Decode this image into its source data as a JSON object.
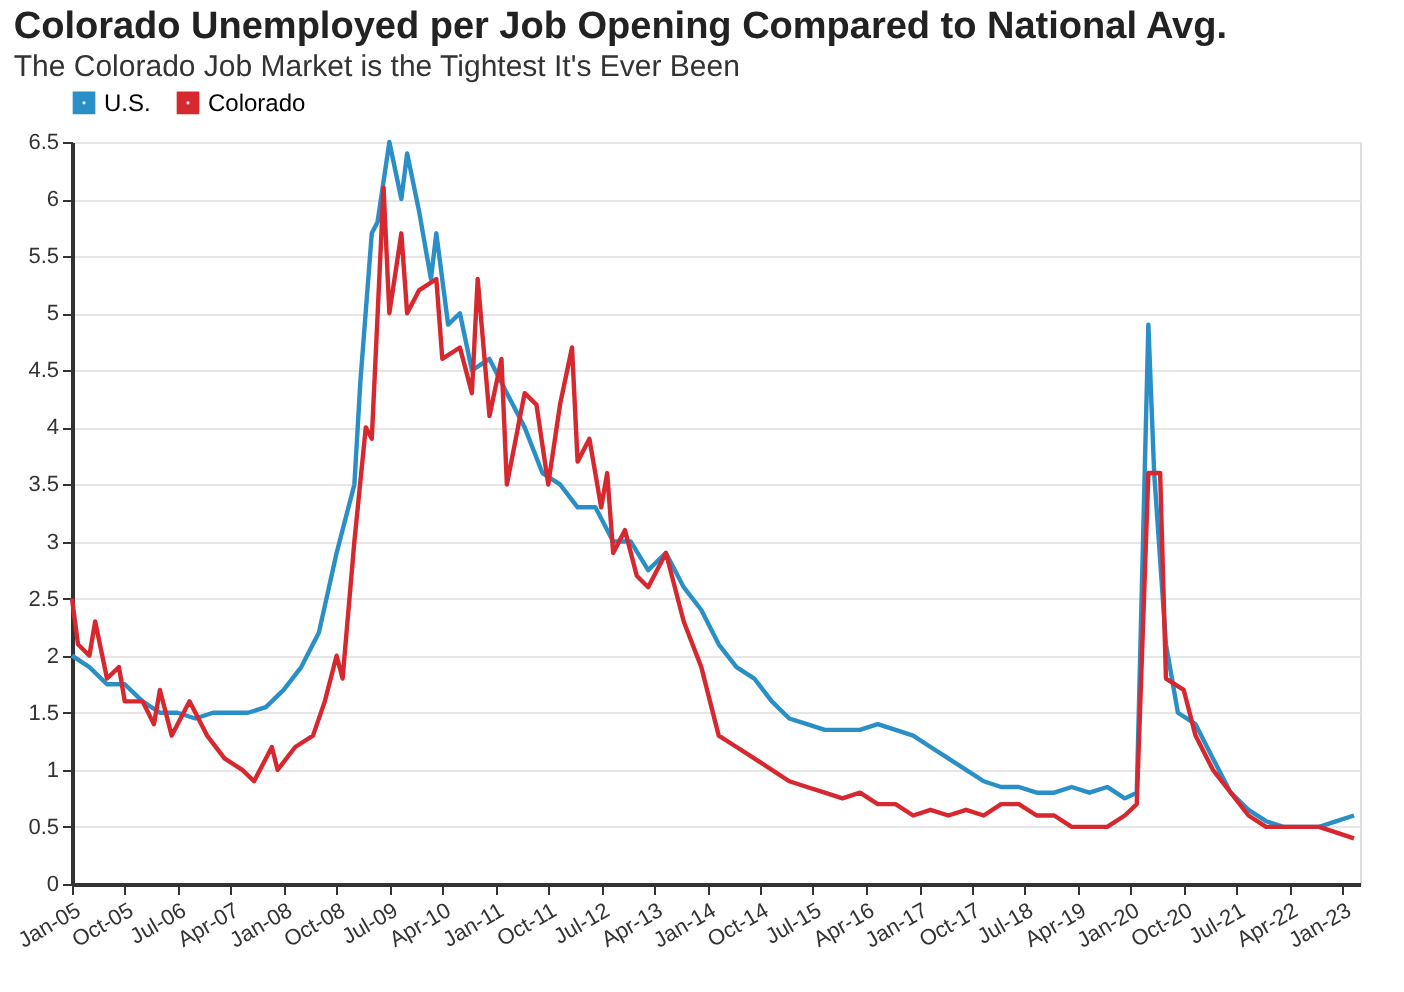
{
  "chart_data": {
    "type": "line",
    "title": "Colorado Unemployed per Job Opening Compared to National Avg.",
    "subtitle": "The Colorado Job Market is the Tightest It's Ever Been",
    "xlim": [
      "2005-01",
      "2023-04"
    ],
    "xticks": [
      {
        "value": "2005-01",
        "label": "Jan-05"
      },
      {
        "value": "2005-10",
        "label": "Oct-05"
      },
      {
        "value": "2006-07",
        "label": "Jul-06"
      },
      {
        "value": "2007-04",
        "label": "Apr-07"
      },
      {
        "value": "2008-01",
        "label": "Jan-08"
      },
      {
        "value": "2008-10",
        "label": "Oct-08"
      },
      {
        "value": "2009-07",
        "label": "Jul-09"
      },
      {
        "value": "2010-04",
        "label": "Apr-10"
      },
      {
        "value": "2011-01",
        "label": "Jan-11"
      },
      {
        "value": "2011-10",
        "label": "Oct-11"
      },
      {
        "value": "2012-07",
        "label": "Jul-12"
      },
      {
        "value": "2013-04",
        "label": "Apr-13"
      },
      {
        "value": "2014-01",
        "label": "Jan-14"
      },
      {
        "value": "2014-10",
        "label": "Oct-14"
      },
      {
        "value": "2015-07",
        "label": "Jul-15"
      },
      {
        "value": "2016-04",
        "label": "Apr-16"
      },
      {
        "value": "2017-01",
        "label": "Jan-17"
      },
      {
        "value": "2017-10",
        "label": "Oct-17"
      },
      {
        "value": "2018-07",
        "label": "Jul-18"
      },
      {
        "value": "2019-04",
        "label": "Apr-19"
      },
      {
        "value": "2020-01",
        "label": "Jan-20"
      },
      {
        "value": "2020-10",
        "label": "Oct-20"
      },
      {
        "value": "2021-07",
        "label": "Jul-21"
      },
      {
        "value": "2022-04",
        "label": "Apr-22"
      },
      {
        "value": "2023-01",
        "label": "Jan-23"
      }
    ],
    "ylim": [
      0,
      6.5
    ],
    "yticks": [
      0,
      0.5,
      1,
      1.5,
      2,
      2.5,
      3,
      3.5,
      4,
      4.5,
      5,
      5.5,
      6,
      6.5
    ],
    "grid": "y",
    "legend": "top left",
    "marker": "none",
    "line_style": "solid",
    "series": [
      {
        "name": "U.S.",
        "color": "#2a8fc7",
        "x": [
          "2005-01",
          "2005-04",
          "2005-07",
          "2005-10",
          "2006-01",
          "2006-04",
          "2006-07",
          "2006-10",
          "2007-01",
          "2007-04",
          "2007-07",
          "2007-10",
          "2008-01",
          "2008-04",
          "2008-07",
          "2008-10",
          "2009-01",
          "2009-02",
          "2009-04",
          "2009-05",
          "2009-07",
          "2009-09",
          "2009-10",
          "2009-12",
          "2010-02",
          "2010-03",
          "2010-05",
          "2010-07",
          "2010-09",
          "2010-12",
          "2011-03",
          "2011-06",
          "2011-09",
          "2011-12",
          "2012-03",
          "2012-06",
          "2012-09",
          "2012-12",
          "2013-03",
          "2013-06",
          "2013-09",
          "2013-12",
          "2014-03",
          "2014-06",
          "2014-09",
          "2014-12",
          "2015-03",
          "2015-06",
          "2015-09",
          "2015-12",
          "2016-03",
          "2016-06",
          "2016-09",
          "2016-12",
          "2017-03",
          "2017-06",
          "2017-09",
          "2017-12",
          "2018-03",
          "2018-06",
          "2018-09",
          "2018-12",
          "2019-03",
          "2019-06",
          "2019-09",
          "2019-12",
          "2020-02",
          "2020-04",
          "2020-05",
          "2020-07",
          "2020-09",
          "2020-12",
          "2021-03",
          "2021-06",
          "2021-09",
          "2021-12",
          "2022-03",
          "2022-06",
          "2022-09",
          "2022-12",
          "2023-03"
        ],
        "values": [
          2.0,
          1.9,
          1.75,
          1.75,
          1.6,
          1.5,
          1.5,
          1.45,
          1.5,
          1.5,
          1.5,
          1.55,
          1.7,
          1.9,
          2.2,
          2.9,
          3.5,
          4.4,
          5.7,
          5.8,
          6.5,
          6.0,
          6.4,
          5.9,
          5.3,
          5.7,
          4.9,
          5.0,
          4.5,
          4.6,
          4.3,
          4.0,
          3.6,
          3.5,
          3.3,
          3.3,
          3.0,
          3.0,
          2.75,
          2.9,
          2.6,
          2.4,
          2.1,
          1.9,
          1.8,
          1.6,
          1.45,
          1.4,
          1.35,
          1.35,
          1.35,
          1.4,
          1.35,
          1.3,
          1.2,
          1.1,
          1.0,
          0.9,
          0.85,
          0.85,
          0.8,
          0.8,
          0.85,
          0.8,
          0.85,
          0.75,
          0.8,
          4.9,
          3.6,
          2.1,
          1.5,
          1.4,
          1.1,
          0.8,
          0.65,
          0.55,
          0.5,
          0.5,
          0.5,
          0.55,
          0.6
        ]
      },
      {
        "name": "Colorado",
        "color": "#d7282f",
        "x": [
          "2005-01",
          "2005-02",
          "2005-04",
          "2005-05",
          "2005-07",
          "2005-09",
          "2005-10",
          "2006-01",
          "2006-03",
          "2006-04",
          "2006-06",
          "2006-09",
          "2006-12",
          "2007-03",
          "2007-06",
          "2007-08",
          "2007-11",
          "2007-12",
          "2008-03",
          "2008-06",
          "2008-08",
          "2008-10",
          "2008-11",
          "2009-01",
          "2009-03",
          "2009-04",
          "2009-06",
          "2009-07",
          "2009-09",
          "2009-10",
          "2009-12",
          "2010-03",
          "2010-04",
          "2010-07",
          "2010-09",
          "2010-10",
          "2010-12",
          "2011-02",
          "2011-03",
          "2011-06",
          "2011-08",
          "2011-10",
          "2011-12",
          "2012-02",
          "2012-03",
          "2012-05",
          "2012-07",
          "2012-08",
          "2012-09",
          "2012-11",
          "2013-01",
          "2013-03",
          "2013-06",
          "2013-09",
          "2013-12",
          "2014-03",
          "2014-06",
          "2014-09",
          "2014-12",
          "2015-03",
          "2015-06",
          "2015-09",
          "2015-12",
          "2016-03",
          "2016-06",
          "2016-09",
          "2016-12",
          "2017-03",
          "2017-06",
          "2017-09",
          "2017-12",
          "2018-03",
          "2018-06",
          "2018-09",
          "2018-12",
          "2019-03",
          "2019-06",
          "2019-09",
          "2019-12",
          "2020-02",
          "2020-04",
          "2020-06",
          "2020-07",
          "2020-10",
          "2020-12",
          "2021-03",
          "2021-06",
          "2021-09",
          "2021-12",
          "2022-03",
          "2022-06",
          "2022-09",
          "2022-12",
          "2023-03"
        ],
        "values": [
          2.5,
          2.1,
          2.0,
          2.3,
          1.8,
          1.9,
          1.6,
          1.6,
          1.4,
          1.7,
          1.3,
          1.6,
          1.3,
          1.1,
          1.0,
          0.9,
          1.2,
          1.0,
          1.2,
          1.3,
          1.6,
          2.0,
          1.8,
          3.0,
          4.0,
          3.9,
          6.1,
          5.0,
          5.7,
          5.0,
          5.2,
          5.3,
          4.6,
          4.7,
          4.3,
          5.3,
          4.1,
          4.6,
          3.5,
          4.3,
          4.2,
          3.5,
          4.2,
          4.7,
          3.7,
          3.9,
          3.3,
          3.6,
          2.9,
          3.1,
          2.7,
          2.6,
          2.9,
          2.3,
          1.9,
          1.3,
          1.2,
          1.1,
          1.0,
          0.9,
          0.85,
          0.8,
          0.75,
          0.8,
          0.7,
          0.7,
          0.6,
          0.65,
          0.6,
          0.65,
          0.6,
          0.7,
          0.7,
          0.6,
          0.6,
          0.5,
          0.5,
          0.5,
          0.6,
          0.7,
          3.6,
          3.6,
          1.8,
          1.7,
          1.3,
          1.0,
          0.8,
          0.6,
          0.5,
          0.5,
          0.5,
          0.5,
          0.45,
          0.4
        ]
      }
    ]
  }
}
